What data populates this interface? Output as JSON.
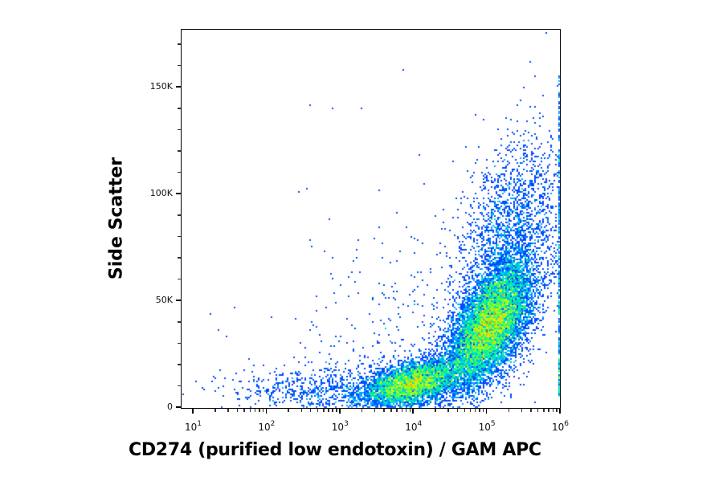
{
  "chart_data": {
    "type": "heatmap",
    "subtype": "flow-cytometry-density-scatter",
    "title": "",
    "xlabel": "CD274 (purified low endotoxin) / GAM APC",
    "ylabel": "Side Scatter",
    "x_scale": "log",
    "xlim": [
      10,
      1000000
    ],
    "ylim": [
      0,
      175000
    ],
    "x_ticks": [
      {
        "base": "10",
        "exp": "1",
        "value": 10
      },
      {
        "base": "10",
        "exp": "2",
        "value": 100
      },
      {
        "base": "10",
        "exp": "3",
        "value": 1000
      },
      {
        "base": "10",
        "exp": "4",
        "value": 10000
      },
      {
        "base": "10",
        "exp": "5",
        "value": 100000
      },
      {
        "base": "10",
        "exp": "6",
        "value": 1000000
      }
    ],
    "y_ticks": [
      {
        "label": "0",
        "value": 0
      },
      {
        "label": "50K",
        "value": 50000
      },
      {
        "label": "100K",
        "value": 100000
      },
      {
        "label": "150K",
        "value": 150000
      }
    ],
    "grid": false,
    "legend": null,
    "colormap": [
      "#0000c8",
      "#0050ff",
      "#00c8ff",
      "#00ff80",
      "#c8ff00",
      "#ffc800",
      "#ff3000"
    ],
    "populations": [
      {
        "name": "main-positive-cluster",
        "center_x_log10": 5.05,
        "center_y": 38000,
        "sd_x_log10": 0.28,
        "sd_y": 14000,
        "corr": 0.55,
        "n": 9000,
        "peak_density": "red"
      },
      {
        "name": "low-ssc-cluster",
        "center_x_log10": 4.0,
        "center_y": 11000,
        "sd_x_log10": 0.35,
        "sd_y": 6000,
        "corr": 0.5,
        "n": 5000,
        "peak_density": "orange"
      },
      {
        "name": "upper-tail",
        "center_x_log10": 5.3,
        "center_y": 75000,
        "sd_x_log10": 0.35,
        "sd_y": 25000,
        "corr": 0.4,
        "n": 2500,
        "peak_density": "blue"
      },
      {
        "name": "low-negative-spread",
        "center_x_log10": 2.7,
        "center_y": 8000,
        "sd_x_log10": 0.6,
        "sd_y": 6000,
        "corr": 0.1,
        "n": 700,
        "peak_density": "blue"
      },
      {
        "name": "sparse-scatter",
        "center_x_log10": 4.0,
        "center_y": 40000,
        "sd_x_log10": 0.9,
        "sd_y": 30000,
        "corr": 0.3,
        "n": 350,
        "peak_density": "blue"
      }
    ],
    "edge_pileup": {
      "x_log10": 6.0,
      "y_range": [
        5000,
        155000
      ],
      "n": 300
    },
    "outliers": [
      {
        "x": 400,
        "y": 141000
      },
      {
        "x": 800,
        "y": 140000
      },
      {
        "x": 2000,
        "y": 140000
      },
      {
        "x": 7500,
        "y": 158000
      },
      {
        "x": 400,
        "y": 78000
      },
      {
        "x": 410,
        "y": 75000
      },
      {
        "x": 12000,
        "y": 118000
      },
      {
        "x": 650000,
        "y": 175000
      },
      {
        "x": 400000,
        "y": 162000
      }
    ]
  }
}
